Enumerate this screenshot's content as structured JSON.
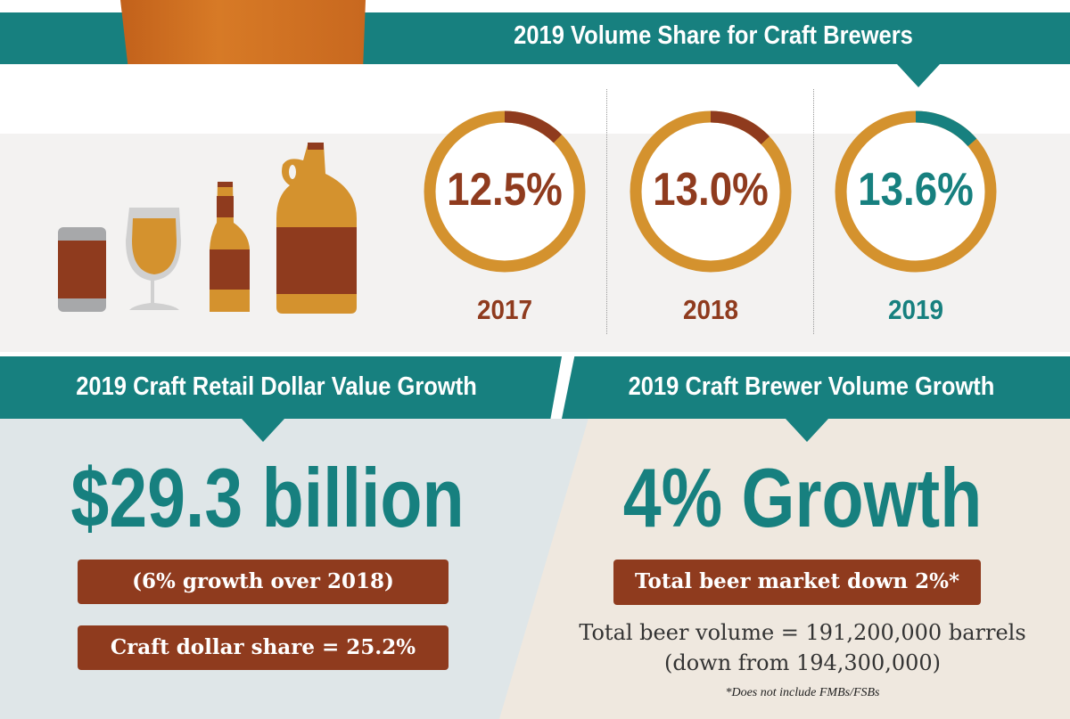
{
  "colors": {
    "teal": "#17807f",
    "gold": "#d4922e",
    "brown": "#8f3b1e",
    "gray_bg": "#f3f2f1"
  },
  "top": {
    "title": "2019 Volume Share for Craft Brewers"
  },
  "icons": [
    "beer-can-icon",
    "tulip-glass-icon",
    "beer-bottle-icon",
    "growler-icon"
  ],
  "volume_share": [
    {
      "year": "2017",
      "label": "12.5%",
      "value": 12.5,
      "color": "#8f3b1e"
    },
    {
      "year": "2018",
      "label": "13.0%",
      "value": 13.0,
      "color": "#8f3b1e"
    },
    {
      "year": "2019",
      "label": "13.6%",
      "value": 13.6,
      "color": "#17807f"
    }
  ],
  "retail": {
    "title": "2019 Craft Retail Dollar Value Growth",
    "headline": "$29.3 billion",
    "box1": "(6% growth over 2018)",
    "box2": "Craft dollar share = 25.2%"
  },
  "volume": {
    "title": "2019 Craft Brewer Volume Growth",
    "headline": "4% Growth",
    "box1": "Total beer market down 2%*",
    "line1": "Total beer volume = 191,200,000 barrels",
    "line2": "(down from 194,300,000)",
    "footnote": "*Does not include FMBs/FSBs"
  }
}
